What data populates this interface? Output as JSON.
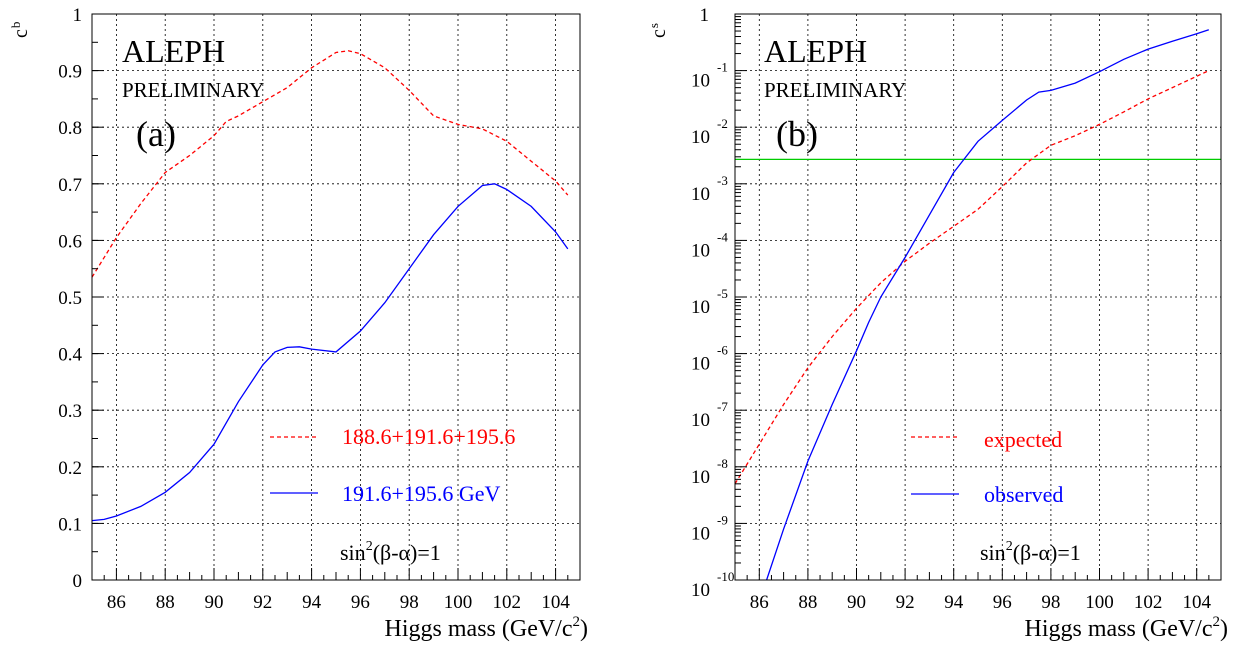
{
  "chart_data": [
    {
      "type": "line",
      "panel": "(a)",
      "experiment": "ALEPH",
      "status": "PRELIMINARY",
      "ylabel_main": "c",
      "ylabel_sub": "b",
      "xlabel": "Higgs mass (GeV/c",
      "xlabel_sup": "2",
      "xlabel_end": ")",
      "xlim": [
        85,
        105
      ],
      "ylim": [
        0,
        1
      ],
      "x_ticks": [
        "86",
        "88",
        "90",
        "92",
        "94",
        "96",
        "98",
        "100",
        "102",
        "104"
      ],
      "y_ticks": [
        "0",
        "0.1",
        "0.2",
        "0.3",
        "0.4",
        "0.5",
        "0.6",
        "0.7",
        "0.8",
        "0.9",
        "1"
      ],
      "grid": true,
      "legend_position": "lower-right",
      "annotation": "sin",
      "annotation_sup": "2",
      "annotation_end": "(β-α)=1",
      "series": [
        {
          "name": "188.6+191.6+195.6",
          "style": "dashed",
          "color": "#ff0000",
          "x": [
            85,
            86,
            87,
            88,
            89,
            90,
            90.5,
            91,
            92,
            93,
            94,
            95,
            95.5,
            96,
            97,
            98,
            99,
            100,
            101,
            102,
            103,
            104,
            104.5
          ],
          "y": [
            0.535,
            0.605,
            0.665,
            0.72,
            0.75,
            0.785,
            0.81,
            0.82,
            0.845,
            0.87,
            0.905,
            0.932,
            0.935,
            0.93,
            0.905,
            0.865,
            0.82,
            0.805,
            0.797,
            0.775,
            0.74,
            0.705,
            0.68
          ]
        },
        {
          "name": "191.6+195.6 GeV",
          "style": "solid",
          "color": "#0000ff",
          "x": [
            85,
            85.5,
            86,
            87,
            88,
            89,
            90,
            91,
            92,
            92.5,
            93,
            93.5,
            94,
            95,
            96,
            97,
            98,
            99,
            100,
            101,
            101.5,
            102,
            103,
            104,
            104.5
          ],
          "y": [
            0.105,
            0.107,
            0.113,
            0.13,
            0.155,
            0.19,
            0.24,
            0.315,
            0.38,
            0.403,
            0.411,
            0.412,
            0.408,
            0.403,
            0.44,
            0.49,
            0.55,
            0.61,
            0.66,
            0.697,
            0.7,
            0.69,
            0.66,
            0.615,
            0.585
          ]
        }
      ]
    },
    {
      "type": "line",
      "panel": "(b)",
      "experiment": "ALEPH",
      "status": "PRELIMINARY",
      "ylabel_main": "c",
      "ylabel_sub": "s",
      "xlabel": "Higgs mass (GeV/c",
      "xlabel_sup": "2",
      "xlabel_end": ")",
      "xlim": [
        85,
        105
      ],
      "ylim_log10": [
        -10,
        0
      ],
      "yscale": "log",
      "x_ticks": [
        "86",
        "88",
        "90",
        "92",
        "94",
        "96",
        "98",
        "100",
        "102",
        "104"
      ],
      "y_top_tick": "1",
      "y_tick_base": "10",
      "y_tick_exponents": [
        "-1",
        "-2",
        "-3",
        "-4",
        "-5",
        "-6",
        "-7",
        "-8",
        "-9",
        "-10"
      ],
      "grid": true,
      "legend_position": "lower-right",
      "annotation": "sin",
      "annotation_sup": "2",
      "annotation_end": "(β-α)=1",
      "reference_line": {
        "y": 0.0027,
        "color": "#00cc00"
      },
      "series": [
        {
          "name": "expected",
          "style": "dashed",
          "color": "#ff0000",
          "x": [
            85,
            86,
            87,
            88,
            89,
            90,
            91,
            92,
            93,
            94,
            95,
            96,
            97,
            98,
            99,
            100,
            101,
            102,
            103,
            104,
            104.5
          ],
          "y_log10": [
            -8.3,
            -7.6,
            -6.9,
            -6.25,
            -5.7,
            -5.2,
            -4.75,
            -4.37,
            -4.05,
            -3.75,
            -3.45,
            -3.05,
            -2.63,
            -2.32,
            -2.15,
            -1.95,
            -1.73,
            -1.5,
            -1.3,
            -1.1,
            -1.0
          ]
        },
        {
          "name": "observed",
          "style": "solid",
          "color": "#0000ff",
          "x": [
            86.3,
            87,
            88,
            89,
            90,
            90.5,
            91,
            92,
            93,
            94,
            95,
            96,
            97,
            97.5,
            98,
            99,
            100,
            101,
            102,
            103,
            104,
            104.5
          ],
          "y_log10": [
            -10.0,
            -9.1,
            -7.9,
            -6.9,
            -5.95,
            -5.45,
            -5.0,
            -4.3,
            -3.55,
            -2.8,
            -2.25,
            -1.88,
            -1.52,
            -1.38,
            -1.35,
            -1.22,
            -1.02,
            -0.8,
            -0.62,
            -0.48,
            -0.35,
            -0.28
          ]
        }
      ]
    }
  ]
}
